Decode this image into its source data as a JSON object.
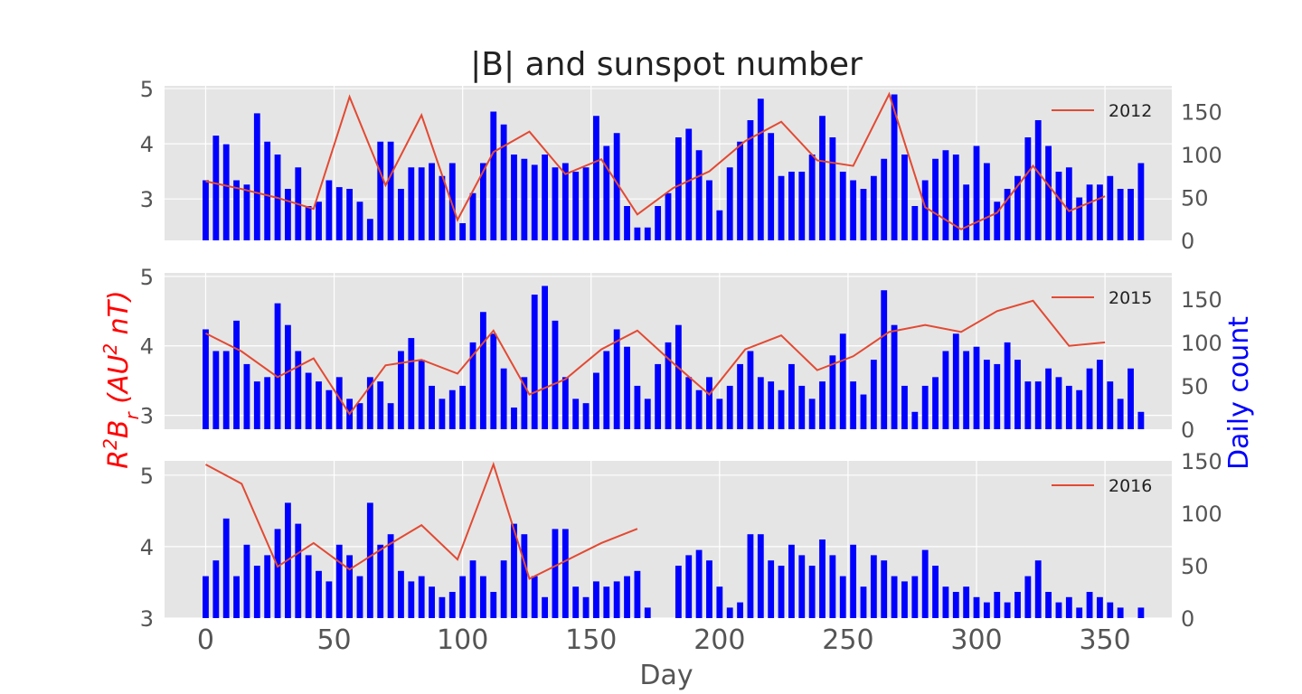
{
  "title": "|B| and sunspot number",
  "xlabel": "Day",
  "left_ylabel": "R²B_r (AU² nT)",
  "right_ylabel": "Daily count",
  "colors": {
    "field_line": "#e24a33",
    "bars": "#0000ff",
    "panel_bg": "#e5e5e5",
    "grid": "#ffffff",
    "left_label": "#ff0000",
    "right_label": "#0000ff"
  },
  "chart_data": [
    {
      "type": "bar",
      "legend": "2012",
      "legend_position": "top-right",
      "xlim": [
        -16,
        376
      ],
      "ylim_left": [
        2.25,
        5.05
      ],
      "ylim_right": [
        0,
        180
      ],
      "yticks_left": [
        3,
        4,
        5
      ],
      "yticks_right": [
        0,
        50,
        100,
        150
      ],
      "xticks": [
        0,
        50,
        100,
        150,
        200,
        250,
        300,
        350
      ],
      "grid": true,
      "line": {
        "x": [
          0,
          14,
          28,
          42,
          56,
          70,
          84,
          98,
          112,
          126,
          140,
          154,
          168,
          182,
          196,
          210,
          224,
          238,
          252,
          266,
          280,
          294,
          308,
          322,
          336,
          350
        ],
        "y": [
          3.32,
          3.18,
          3.02,
          2.82,
          4.85,
          3.25,
          4.52,
          2.62,
          3.85,
          4.22,
          3.45,
          3.72,
          2.72,
          3.2,
          3.5,
          4.05,
          4.4,
          3.7,
          3.6,
          4.9,
          2.85,
          2.45,
          2.75,
          3.6,
          2.78,
          3.05
        ]
      },
      "bars": [
        {
          "x": [
            0,
            4,
            8,
            12,
            16,
            20,
            24,
            28,
            32,
            36,
            40,
            44,
            48,
            52,
            56,
            60,
            64,
            68,
            72,
            76,
            80,
            84,
            88,
            92,
            96,
            100,
            104,
            108,
            112,
            116,
            120,
            124,
            128,
            132,
            136,
            140,
            144,
            148,
            152,
            156,
            160,
            164,
            168,
            172,
            176,
            180,
            184,
            188,
            192,
            196,
            200,
            204,
            208,
            212,
            216,
            220,
            224,
            228,
            232,
            236,
            240,
            244,
            248,
            252,
            256,
            260,
            264,
            268,
            272,
            276,
            280,
            284,
            288,
            292,
            296,
            300,
            304,
            308,
            312,
            316,
            320,
            324,
            328,
            332,
            336,
            340,
            344,
            348,
            352,
            356,
            360,
            364
          ],
          "values": [
            70,
            122,
            112,
            70,
            65,
            148,
            115,
            100,
            60,
            85,
            40,
            45,
            70,
            62,
            60,
            45,
            25,
            115,
            115,
            60,
            85,
            85,
            90,
            75,
            90,
            20,
            55,
            90,
            150,
            135,
            100,
            95,
            88,
            100,
            85,
            90,
            80,
            85,
            145,
            110,
            125,
            40,
            15,
            15,
            40,
            55,
            120,
            130,
            105,
            70,
            35,
            85,
            115,
            140,
            165,
            125,
            75,
            80,
            80,
            100,
            145,
            120,
            80,
            70,
            60,
            75,
            95,
            170,
            100,
            40,
            70,
            95,
            105,
            100,
            65,
            110,
            90,
            45,
            60,
            75,
            120,
            140,
            110,
            80,
            85,
            50,
            65,
            65,
            75,
            60,
            60,
            90
          ]
        }
      ]
    },
    {
      "type": "bar",
      "legend": "2015",
      "legend_position": "top-right",
      "xlim": [
        -16,
        376
      ],
      "ylim_left": [
        2.8,
        5.05
      ],
      "ylim_right": [
        0,
        180
      ],
      "yticks_left": [
        3,
        4,
        5
      ],
      "yticks_right": [
        0,
        50,
        100,
        150
      ],
      "xticks": [
        0,
        50,
        100,
        150,
        200,
        250,
        300,
        350
      ],
      "grid": true,
      "line": {
        "x": [
          0,
          14,
          28,
          42,
          56,
          70,
          84,
          98,
          112,
          126,
          140,
          154,
          168,
          182,
          196,
          210,
          224,
          238,
          252,
          266,
          280,
          294,
          308,
          322,
          336,
          350
        ],
        "y": [
          4.18,
          3.92,
          3.55,
          3.82,
          3.02,
          3.72,
          3.8,
          3.6,
          4.22,
          3.3,
          3.52,
          3.95,
          4.22,
          3.75,
          3.3,
          3.95,
          4.15,
          3.65,
          3.85,
          4.2,
          4.3,
          4.2,
          4.5,
          4.65,
          4.0,
          4.05
        ]
      },
      "bars": [
        {
          "x": [
            0,
            4,
            8,
            12,
            16,
            20,
            24,
            28,
            32,
            36,
            40,
            44,
            48,
            52,
            56,
            60,
            64,
            68,
            72,
            76,
            80,
            84,
            88,
            92,
            96,
            100,
            104,
            108,
            112,
            116,
            120,
            124,
            128,
            132,
            136,
            140,
            144,
            148,
            152,
            156,
            160,
            164,
            168,
            172,
            176,
            180,
            184,
            188,
            192,
            196,
            200,
            204,
            208,
            212,
            216,
            220,
            224,
            228,
            232,
            236,
            240,
            244,
            248,
            252,
            256,
            260,
            264,
            268,
            272,
            276,
            280,
            284,
            288,
            292,
            296,
            300,
            304,
            308,
            312,
            316,
            320,
            324,
            328,
            332,
            336,
            340,
            344,
            348,
            352,
            356,
            360,
            364
          ],
          "values": [
            115,
            90,
            90,
            125,
            75,
            55,
            60,
            145,
            120,
            90,
            65,
            55,
            45,
            60,
            35,
            30,
            60,
            55,
            30,
            90,
            105,
            80,
            50,
            35,
            45,
            50,
            100,
            135,
            110,
            70,
            25,
            60,
            155,
            165,
            125,
            60,
            35,
            30,
            65,
            90,
            115,
            95,
            50,
            35,
            75,
            100,
            120,
            60,
            45,
            60,
            35,
            50,
            75,
            90,
            60,
            55,
            45,
            75,
            50,
            35,
            55,
            85,
            110,
            55,
            40,
            80,
            160,
            120,
            50,
            20,
            50,
            60,
            90,
            110,
            90,
            95,
            80,
            75,
            100,
            80,
            55,
            55,
            70,
            60,
            50,
            45,
            70,
            80,
            55,
            35,
            70,
            20
          ]
        }
      ]
    },
    {
      "type": "bar",
      "legend": "2016",
      "legend_position": "top-right",
      "xlim": [
        -16,
        376
      ],
      "ylim_left": [
        3.0,
        5.2
      ],
      "ylim_right": [
        0,
        150
      ],
      "yticks_left": [
        3,
        4,
        5
      ],
      "yticks_right": [
        0,
        50,
        100,
        150
      ],
      "xticks": [
        0,
        50,
        100,
        150,
        200,
        250,
        300,
        350
      ],
      "grid": true,
      "line": {
        "x": [
          0,
          14,
          28,
          42,
          56,
          70,
          84,
          98,
          112,
          126,
          140,
          154,
          168
        ],
        "y": [
          5.15,
          4.88,
          3.72,
          4.05,
          3.68,
          4.0,
          4.3,
          3.82,
          5.15,
          3.55,
          3.8,
          4.05,
          4.25
        ]
      },
      "bars": [
        {
          "x": [
            0,
            4,
            8,
            12,
            16,
            20,
            24,
            28,
            32,
            36,
            40,
            44,
            48,
            52,
            56,
            60,
            64,
            68,
            72,
            76,
            80,
            84,
            88,
            92,
            96,
            100,
            104,
            108,
            112,
            116,
            120,
            124,
            128,
            132,
            136,
            140,
            144,
            148,
            152,
            156,
            160,
            164,
            168,
            172,
            184,
            188,
            192,
            196,
            200,
            204,
            208,
            212,
            216,
            220,
            224,
            228,
            232,
            236,
            240,
            244,
            248,
            252,
            256,
            260,
            264,
            268,
            272,
            276,
            280,
            284,
            288,
            292,
            296,
            300,
            304,
            308,
            312,
            316,
            320,
            324,
            328,
            332,
            336,
            340,
            344,
            348,
            352,
            356,
            364
          ],
          "values": [
            40,
            55,
            95,
            40,
            70,
            50,
            60,
            85,
            110,
            90,
            60,
            45,
            35,
            70,
            60,
            40,
            110,
            70,
            80,
            45,
            35,
            40,
            30,
            20,
            25,
            40,
            55,
            40,
            25,
            55,
            90,
            80,
            40,
            20,
            85,
            85,
            30,
            20,
            35,
            30,
            35,
            40,
            45,
            10,
            50,
            60,
            65,
            55,
            30,
            10,
            15,
            80,
            80,
            55,
            50,
            70,
            60,
            50,
            75,
            60,
            40,
            70,
            30,
            60,
            55,
            40,
            35,
            40,
            65,
            50,
            30,
            25,
            30,
            20,
            15,
            25,
            15,
            25,
            40,
            55,
            25,
            15,
            20,
            10,
            25,
            20,
            15,
            10,
            10
          ]
        }
      ]
    }
  ]
}
